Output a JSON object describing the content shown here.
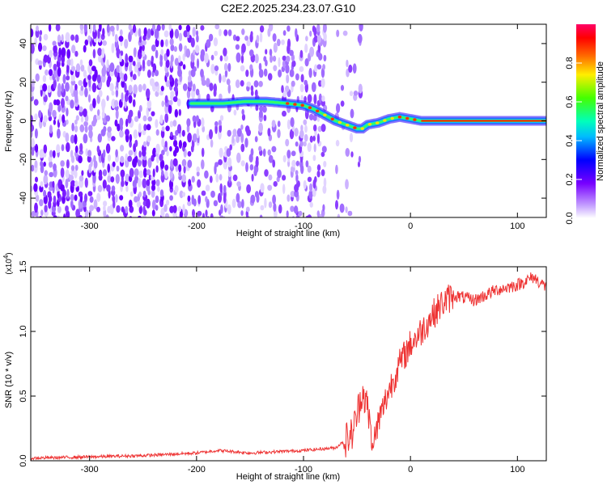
{
  "title": "C2E2.2025.234.23.07.G10",
  "chart_data": [
    {
      "type": "heatmap",
      "xlabel": "Height of straight line (km)",
      "ylabel": "Frequency (Hz)",
      "xlim": [
        -355,
        127
      ],
      "ylim": [
        -50,
        50
      ],
      "x_ticks": [
        -300,
        -200,
        -100,
        0,
        100
      ],
      "y_ticks": [
        -40,
        -20,
        0,
        20,
        40
      ],
      "colorbar": {
        "label": "Normalized spectral amplitude",
        "range": [
          0,
          1
        ],
        "ticks": [
          "0.0",
          "0.2",
          "0.4",
          "0.6",
          "0.8"
        ],
        "colormap": "rainbow: white-violet-blue-cyan-green-yellow-red-magenta"
      },
      "ridge": {
        "description": "dominant frequency track",
        "x": [
          -205,
          -190,
          -175,
          -155,
          -135,
          -115,
          -100,
          -90,
          -80,
          -70,
          -60,
          -50,
          -45,
          -40,
          -30,
          -20,
          -10,
          0,
          10,
          30,
          60,
          100,
          127
        ],
        "y": [
          9,
          9,
          9,
          10,
          10,
          9,
          8,
          6,
          3,
          0,
          -2,
          -4,
          -4,
          -2,
          -1,
          1,
          2,
          1,
          0,
          0,
          0,
          0,
          0
        ]
      },
      "grid": false
    },
    {
      "type": "line",
      "xlabel": "Height of straight line (km)",
      "ylabel": "SNR (10 * v/v)",
      "exponent_label": "(x10",
      "exponent_power": "4",
      "exponent_close": ")",
      "xlim": [
        -355,
        127
      ],
      "ylim": [
        0,
        1.5
      ],
      "x_ticks": [
        -300,
        -200,
        -100,
        0,
        100
      ],
      "y_ticks": [
        "0.0",
        "0.5",
        "1.0",
        "1.5"
      ],
      "series": [
        {
          "color": "#ee3333",
          "x": [
            -355,
            -300,
            -250,
            -200,
            -180,
            -150,
            -100,
            -70,
            -55,
            -50,
            -45,
            -40,
            -35,
            -30,
            -20,
            -10,
            0,
            10,
            20,
            30,
            40,
            60,
            80,
            100,
            115,
            127
          ],
          "y": [
            0.02,
            0.03,
            0.04,
            0.06,
            0.08,
            0.06,
            0.08,
            0.1,
            0.2,
            0.35,
            0.55,
            0.4,
            0.1,
            0.3,
            0.55,
            0.75,
            0.9,
            1.0,
            1.12,
            1.22,
            1.28,
            1.24,
            1.32,
            1.36,
            1.42,
            1.34
          ]
        }
      ],
      "grid": false
    }
  ]
}
